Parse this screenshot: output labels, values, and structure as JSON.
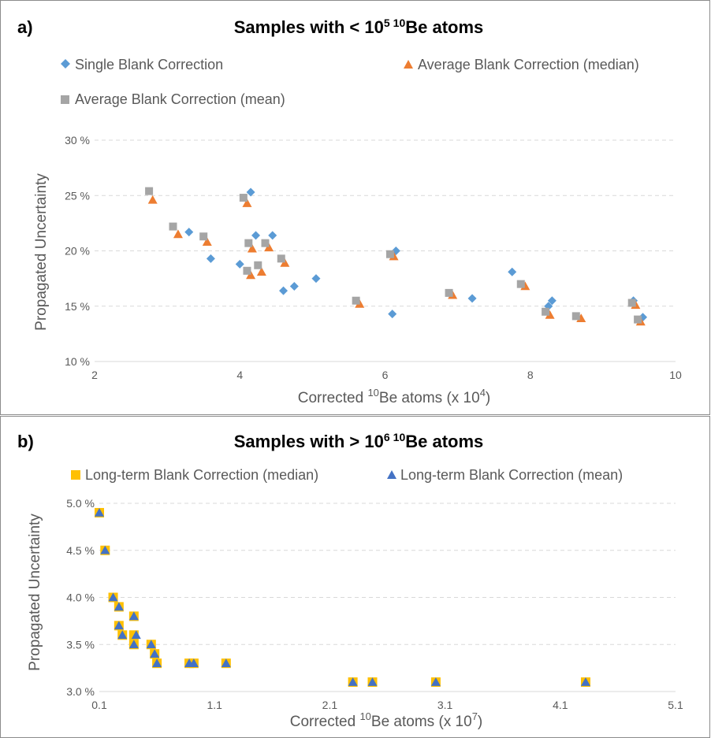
{
  "colors": {
    "single": "#5B9BD5",
    "median": "#ED7D31",
    "mean": "#A5A5A5",
    "lt_median": "#FFC000",
    "lt_mean": "#4472C4",
    "grid": "#D9D9D9",
    "panel_border": "#8C8C8C"
  },
  "chart_data": [
    {
      "type": "scatter",
      "panel_label": "a)",
      "title_text": "Samples with < 10",
      "title_exp": "5",
      "title_sup": "10",
      "title_tail": "Be atoms",
      "xlabel_text": "Corrected ",
      "xlabel_sup": "10",
      "xlabel_mid": "Be atoms (x 10",
      "xlabel_exp": "4",
      "xlabel_end": ")",
      "ylabel": "Propagated Uncertainty",
      "xlim": [
        2,
        10
      ],
      "ylim": [
        10,
        30
      ],
      "xticks": [
        "2",
        "4",
        "6",
        "8",
        "10"
      ],
      "yticks": [
        "10 %",
        "15 %",
        "20 %",
        "25 %",
        "30 %"
      ],
      "grid": "horizontal dashed",
      "legend_position": "top",
      "series": [
        {
          "name": "Single Blank Correction",
          "marker": "diamond",
          "color_key": "single",
          "points": [
            [
              3.3,
              21.7
            ],
            [
              3.6,
              19.3
            ],
            [
              4.0,
              18.8
            ],
            [
              4.15,
              25.3
            ],
            [
              4.22,
              21.4
            ],
            [
              4.45,
              21.4
            ],
            [
              4.6,
              16.4
            ],
            [
              4.75,
              16.8
            ],
            [
              5.05,
              17.5
            ],
            [
              6.1,
              14.3
            ],
            [
              6.15,
              20.0
            ],
            [
              7.2,
              15.7
            ],
            [
              7.75,
              18.1
            ],
            [
              8.25,
              15.0
            ],
            [
              8.3,
              15.5
            ],
            [
              9.42,
              15.5
            ],
            [
              9.55,
              14.0
            ]
          ]
        },
        {
          "name": "Average Blank Correction (median)",
          "marker": "triangle",
          "color_key": "median",
          "points": [
            [
              2.8,
              24.6
            ],
            [
              3.15,
              21.5
            ],
            [
              3.55,
              20.8
            ],
            [
              4.1,
              24.3
            ],
            [
              4.15,
              17.8
            ],
            [
              4.17,
              20.2
            ],
            [
              4.3,
              18.1
            ],
            [
              4.4,
              20.3
            ],
            [
              4.62,
              18.9
            ],
            [
              5.65,
              15.2
            ],
            [
              6.12,
              19.5
            ],
            [
              6.93,
              16.0
            ],
            [
              7.93,
              16.8
            ],
            [
              8.27,
              14.2
            ],
            [
              8.7,
              13.9
            ],
            [
              9.45,
              15.1
            ],
            [
              9.52,
              13.6
            ]
          ]
        },
        {
          "name": "Average Blank Correction (mean)",
          "marker": "square",
          "color_key": "mean",
          "points": [
            [
              2.75,
              25.4
            ],
            [
              3.08,
              22.2
            ],
            [
              3.5,
              21.3
            ],
            [
              4.05,
              24.8
            ],
            [
              4.1,
              18.2
            ],
            [
              4.12,
              20.7
            ],
            [
              4.25,
              18.7
            ],
            [
              4.35,
              20.7
            ],
            [
              4.57,
              19.3
            ],
            [
              5.6,
              15.5
            ],
            [
              6.07,
              19.7
            ],
            [
              6.88,
              16.2
            ],
            [
              7.87,
              17.0
            ],
            [
              8.21,
              14.5
            ],
            [
              8.63,
              14.1
            ],
            [
              9.4,
              15.3
            ],
            [
              9.48,
              13.8
            ]
          ]
        }
      ]
    },
    {
      "type": "scatter",
      "panel_label": "b)",
      "title_text": "Samples with > 10",
      "title_exp": "6",
      "title_sup": "10",
      "title_tail": "Be atoms",
      "xlabel_text": "Corrected ",
      "xlabel_sup": "10",
      "xlabel_mid": "Be atoms (x 10",
      "xlabel_exp": "7",
      "xlabel_end": ")",
      "ylabel": "Propagated Uncertainty",
      "xlim": [
        0.1,
        5.1
      ],
      "ylim": [
        3.0,
        5.0
      ],
      "xticks": [
        "0.1",
        "1.1",
        "2.1",
        "3.1",
        "4.1",
        "5.1"
      ],
      "yticks": [
        "3.0 %",
        "3.5 %",
        "4.0 %",
        "4.5 %",
        "5.0 %"
      ],
      "grid": "horizontal dashed",
      "legend_position": "top",
      "series": [
        {
          "name": "Long-term Blank Correction (median)",
          "marker": "square",
          "color_key": "lt_median",
          "points": [
            [
              0.1,
              4.9
            ],
            [
              0.15,
              4.5
            ],
            [
              0.22,
              4.0
            ],
            [
              0.27,
              3.9
            ],
            [
              0.27,
              3.7
            ],
            [
              0.3,
              3.6
            ],
            [
              0.4,
              3.8
            ],
            [
              0.4,
              3.5
            ],
            [
              0.4,
              3.6
            ],
            [
              0.55,
              3.5
            ],
            [
              0.58,
              3.4
            ],
            [
              0.6,
              3.3
            ],
            [
              0.88,
              3.3
            ],
            [
              0.92,
              3.3
            ],
            [
              1.2,
              3.3
            ],
            [
              2.3,
              3.1
            ],
            [
              2.47,
              3.1
            ],
            [
              3.02,
              3.1
            ],
            [
              4.32,
              3.1
            ]
          ]
        },
        {
          "name": "Long-term Blank Correction (mean)",
          "marker": "triangle",
          "color_key": "lt_mean",
          "points": [
            [
              0.1,
              4.9
            ],
            [
              0.15,
              4.5
            ],
            [
              0.22,
              4.0
            ],
            [
              0.27,
              3.9
            ],
            [
              0.27,
              3.7
            ],
            [
              0.3,
              3.6
            ],
            [
              0.4,
              3.8
            ],
            [
              0.4,
              3.5
            ],
            [
              0.42,
              3.6
            ],
            [
              0.55,
              3.5
            ],
            [
              0.58,
              3.4
            ],
            [
              0.6,
              3.3
            ],
            [
              0.88,
              3.3
            ],
            [
              0.92,
              3.3
            ],
            [
              1.2,
              3.3
            ],
            [
              2.3,
              3.1
            ],
            [
              2.47,
              3.1
            ],
            [
              3.02,
              3.1
            ],
            [
              4.32,
              3.1
            ]
          ]
        }
      ]
    }
  ]
}
